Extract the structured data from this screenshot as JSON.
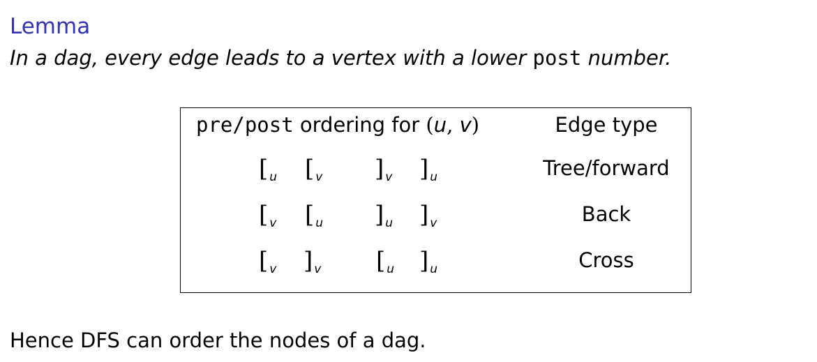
{
  "lemma": {
    "title": "Lemma",
    "text_before": "In a dag, every edge leads to a vertex with a lower ",
    "code": "post",
    "text_after": " number."
  },
  "table": {
    "header_mono": "pre/post",
    "header_text": " ordering for ",
    "header_open": "(",
    "header_u": "u",
    "header_comma": ", ",
    "header_v": "v",
    "header_close": ")",
    "header_edge_type": "Edge type",
    "rows": [
      {
        "brackets": [
          {
            "sym": "[",
            "sub": "u"
          },
          {
            "sym": "[",
            "sub": "v"
          },
          {
            "sym": "]",
            "sub": "v"
          },
          {
            "sym": "]",
            "sub": "u"
          }
        ],
        "edge_type": "Tree/forward"
      },
      {
        "brackets": [
          {
            "sym": "[",
            "sub": "v"
          },
          {
            "sym": "[",
            "sub": "u"
          },
          {
            "sym": "]",
            "sub": "u"
          },
          {
            "sym": "]",
            "sub": "v"
          }
        ],
        "edge_type": "Back"
      },
      {
        "brackets": [
          {
            "sym": "[",
            "sub": "v"
          },
          {
            "sym": "]",
            "sub": "v"
          },
          {
            "sym": "[",
            "sub": "u"
          },
          {
            "sym": "]",
            "sub": "u"
          }
        ],
        "edge_type": "Cross"
      }
    ]
  },
  "conclusion": "Hence DFS can order the nodes of a dag."
}
